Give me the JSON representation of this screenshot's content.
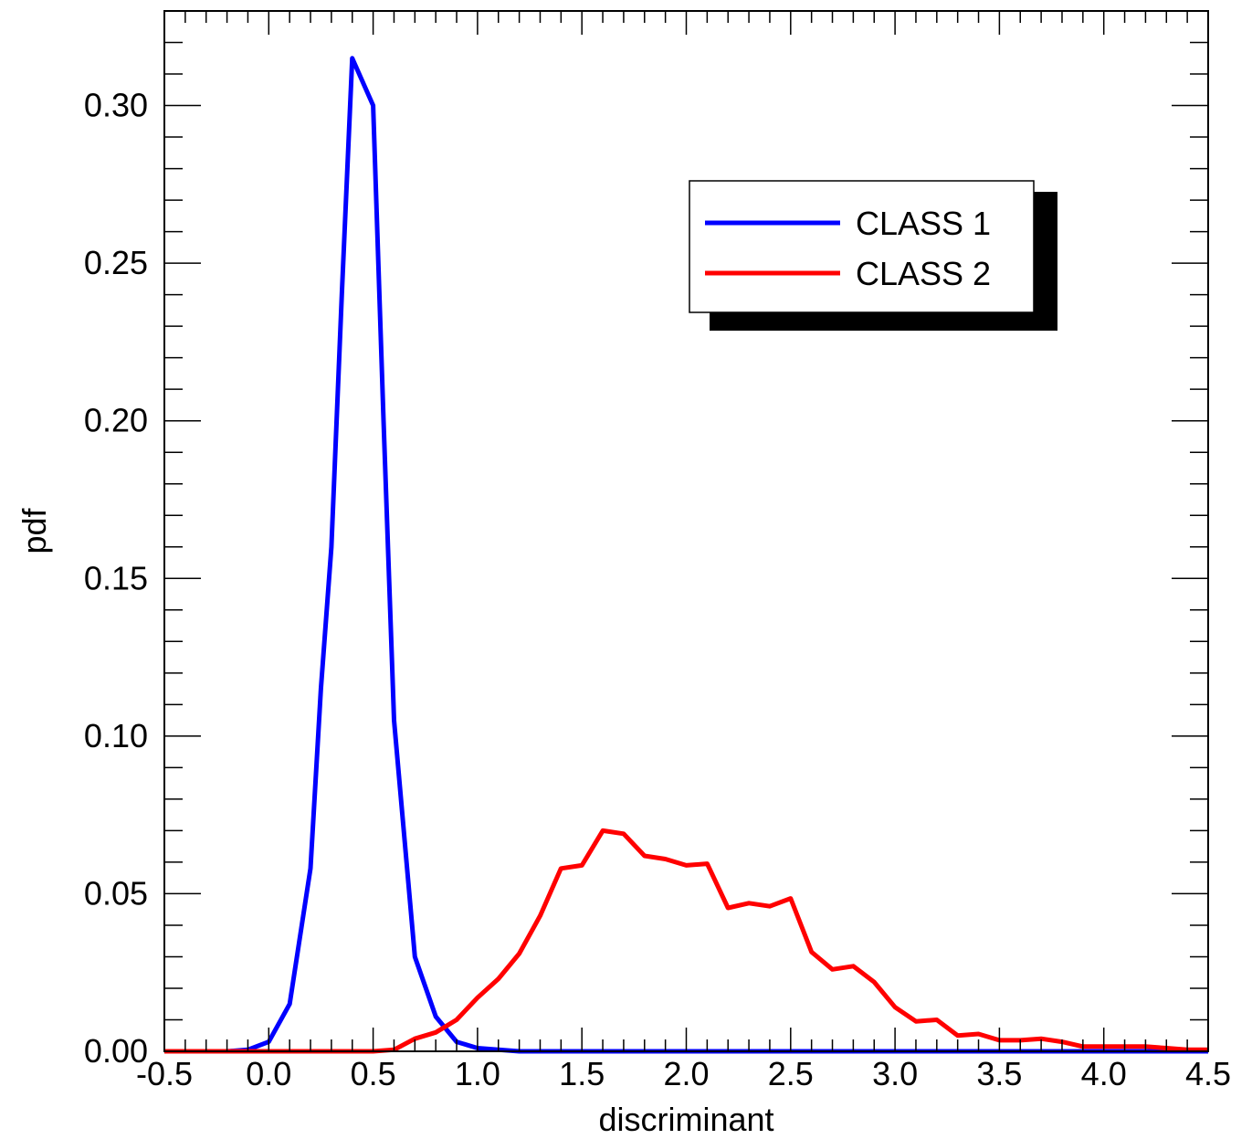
{
  "chart_data": {
    "type": "line",
    "title": "",
    "xlabel": "discriminant",
    "ylabel": "pdf",
    "xlim": [
      -0.5,
      4.5
    ],
    "ylim": [
      0.0,
      0.33
    ],
    "x_ticks": [
      "-0.5",
      "0.0",
      "0.5",
      "1.0",
      "1.5",
      "2.0",
      "2.5",
      "3.0",
      "3.5",
      "4.0",
      "4.5"
    ],
    "y_ticks": [
      "0.00",
      "0.05",
      "0.10",
      "0.15",
      "0.20",
      "0.25",
      "0.30"
    ],
    "grid": false,
    "legend_position": "top-right",
    "series": [
      {
        "name": "CLASS 1",
        "color": "#0000ff",
        "x": [
          -0.5,
          -0.4,
          -0.3,
          -0.2,
          -0.1,
          0.0,
          0.1,
          0.2,
          0.25,
          0.3,
          0.35,
          0.4,
          0.5,
          0.55,
          0.6,
          0.7,
          0.8,
          0.9,
          1.0,
          1.1,
          1.2,
          1.5,
          2.0,
          3.0,
          4.0,
          4.5
        ],
        "y": [
          0.0,
          0.0,
          0.0,
          0.0,
          0.0005,
          0.003,
          0.015,
          0.058,
          0.115,
          0.16,
          0.24,
          0.315,
          0.3,
          0.2,
          0.105,
          0.03,
          0.011,
          0.003,
          0.001,
          0.0005,
          0.0,
          0.0,
          0.0,
          0.0,
          0.0,
          0.0
        ]
      },
      {
        "name": "CLASS 2",
        "color": "#ff0000",
        "x": [
          -0.5,
          0.0,
          0.5,
          0.6,
          0.7,
          0.8,
          0.9,
          1.0,
          1.1,
          1.2,
          1.3,
          1.4,
          1.5,
          1.6,
          1.7,
          1.8,
          1.9,
          2.0,
          2.1,
          2.2,
          2.3,
          2.4,
          2.5,
          2.6,
          2.7,
          2.8,
          2.9,
          3.0,
          3.1,
          3.2,
          3.3,
          3.4,
          3.5,
          3.6,
          3.7,
          3.8,
          3.9,
          4.0,
          4.1,
          4.2,
          4.3,
          4.4,
          4.5
        ],
        "y": [
          0.0,
          0.0,
          0.0,
          0.0005,
          0.004,
          0.006,
          0.01,
          0.017,
          0.023,
          0.031,
          0.043,
          0.058,
          0.059,
          0.07,
          0.069,
          0.062,
          0.061,
          0.059,
          0.0595,
          0.0455,
          0.047,
          0.046,
          0.0485,
          0.0315,
          0.026,
          0.027,
          0.022,
          0.014,
          0.0095,
          0.01,
          0.005,
          0.0055,
          0.0035,
          0.0035,
          0.004,
          0.003,
          0.0015,
          0.0015,
          0.0015,
          0.0015,
          0.001,
          0.0005,
          0.0005
        ]
      }
    ]
  }
}
